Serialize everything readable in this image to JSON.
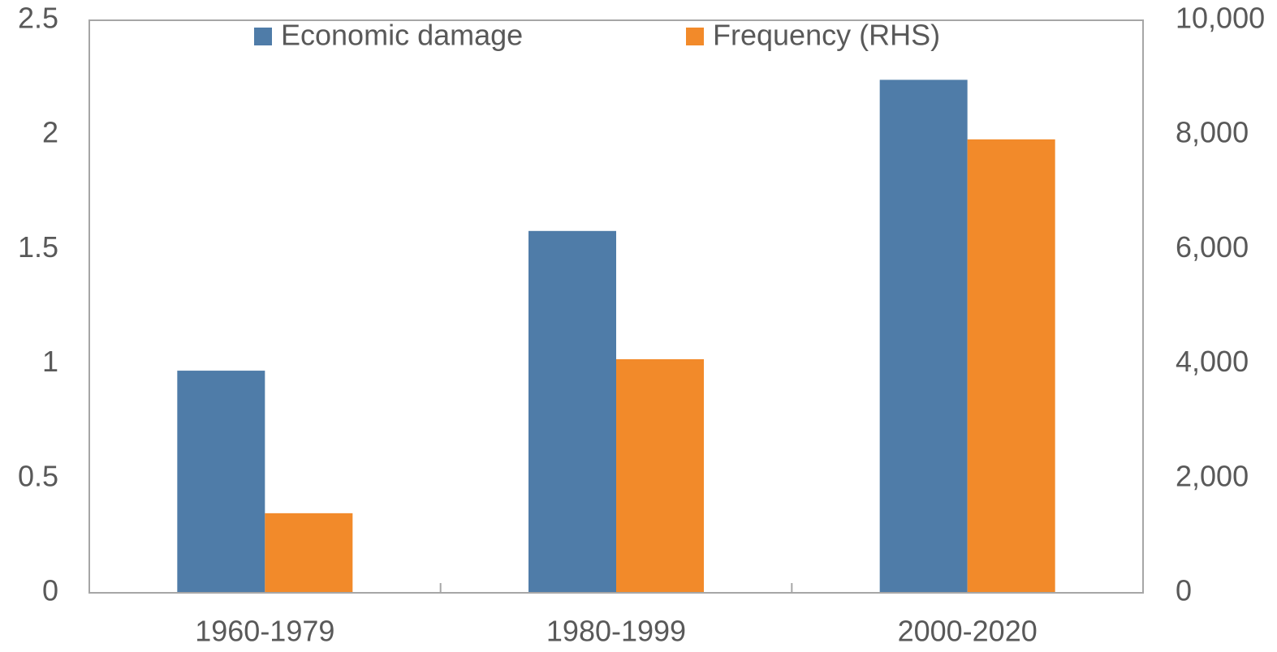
{
  "chart_data": {
    "type": "bar",
    "categories": [
      "1960-1979",
      "1980-1999",
      "2000-2020"
    ],
    "series": [
      {
        "name": "Economic damage",
        "color": "#4f7ca8",
        "values": [
          0.97,
          1.58,
          2.24
        ]
      },
      {
        "name": "Frequency (RHS)",
        "color": "#f28a2a",
        "axis": "y2",
        "values": [
          1390,
          4080,
          7920
        ]
      }
    ],
    "ylim": [
      0,
      2.5
    ],
    "yticks": [
      0,
      0.5,
      1,
      1.5,
      2,
      2.5
    ],
    "y2lim": [
      0,
      10000
    ],
    "y2ticks": [
      0,
      {
        "value": 2000,
        "label": "2,000"
      },
      {
        "value": 4000,
        "label": "4,000"
      },
      {
        "value": 6000,
        "label": "6,000"
      },
      {
        "value": 8000,
        "label": "8,000"
      },
      {
        "value": 10000,
        "label": "10,000"
      }
    ],
    "legend": "top",
    "grid": false
  }
}
